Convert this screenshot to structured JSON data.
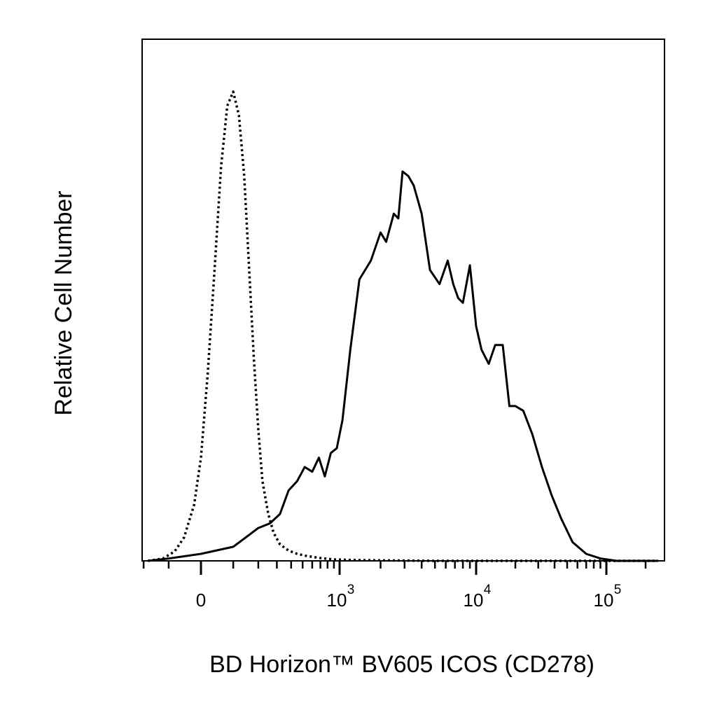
{
  "chart_data": {
    "type": "line",
    "xlabel": "BD Horizon™ BV605 ICOS (CD278)",
    "ylabel": "Relative Cell Number",
    "x_scale": "biexponential",
    "x_ticks": [
      {
        "value": 0,
        "label": "0",
        "exp": ""
      },
      {
        "value": 1000,
        "label": "10",
        "exp": "3"
      },
      {
        "value": 10000,
        "label": "10",
        "exp": "4"
      },
      {
        "value": 100000,
        "label": "10",
        "exp": "5"
      }
    ],
    "xlim": [
      -300,
      250000
    ],
    "ylim": [
      0,
      100
    ],
    "grid": false,
    "legend": "none",
    "colors": {
      "line": "#000000",
      "frame": "#000000"
    },
    "series": [
      {
        "style": "dotted",
        "x": [
          -180,
          -120,
          -80,
          -50,
          -20,
          0,
          20,
          40,
          60,
          80,
          100,
          120,
          140,
          160,
          180,
          200,
          220,
          250,
          280,
          320,
          380,
          450,
          550,
          700,
          900,
          1200,
          2000,
          5000,
          20000,
          100000,
          250000
        ],
        "y": [
          0,
          0.5,
          2,
          5,
          12,
          22,
          40,
          62,
          84,
          97,
          100,
          95,
          82,
          62,
          43,
          28,
          17,
          10,
          6,
          3.5,
          2.2,
          1.5,
          1.0,
          0.6,
          0.3,
          0.2,
          0.1,
          0,
          0,
          0,
          0
        ]
      },
      {
        "style": "solid",
        "x": [
          -180,
          -100,
          0,
          100,
          200,
          260,
          320,
          380,
          450,
          520,
          600,
          680,
          760,
          850,
          950,
          1050,
          1200,
          1400,
          1700,
          2000,
          2200,
          2500,
          2700,
          2900,
          3200,
          3500,
          4000,
          4600,
          5400,
          6200,
          6800,
          7400,
          8000,
          9000,
          10000,
          11000,
          12500,
          14000,
          16000,
          18000,
          20000,
          23000,
          27000,
          32000,
          38000,
          45000,
          55000,
          70000,
          90000,
          120000,
          250000
        ],
        "y": [
          0,
          0.5,
          1.5,
          3,
          7,
          8,
          10,
          15,
          17,
          20,
          19,
          22,
          18,
          23,
          24,
          30,
          45,
          60,
          64,
          70,
          68,
          74,
          73,
          83,
          82,
          80,
          74,
          62,
          59,
          64,
          59,
          56,
          55,
          63,
          50,
          45,
          42,
          46,
          46,
          33,
          33,
          32,
          27,
          20,
          14,
          9,
          4,
          1.5,
          0.5,
          0,
          0
        ]
      }
    ]
  }
}
